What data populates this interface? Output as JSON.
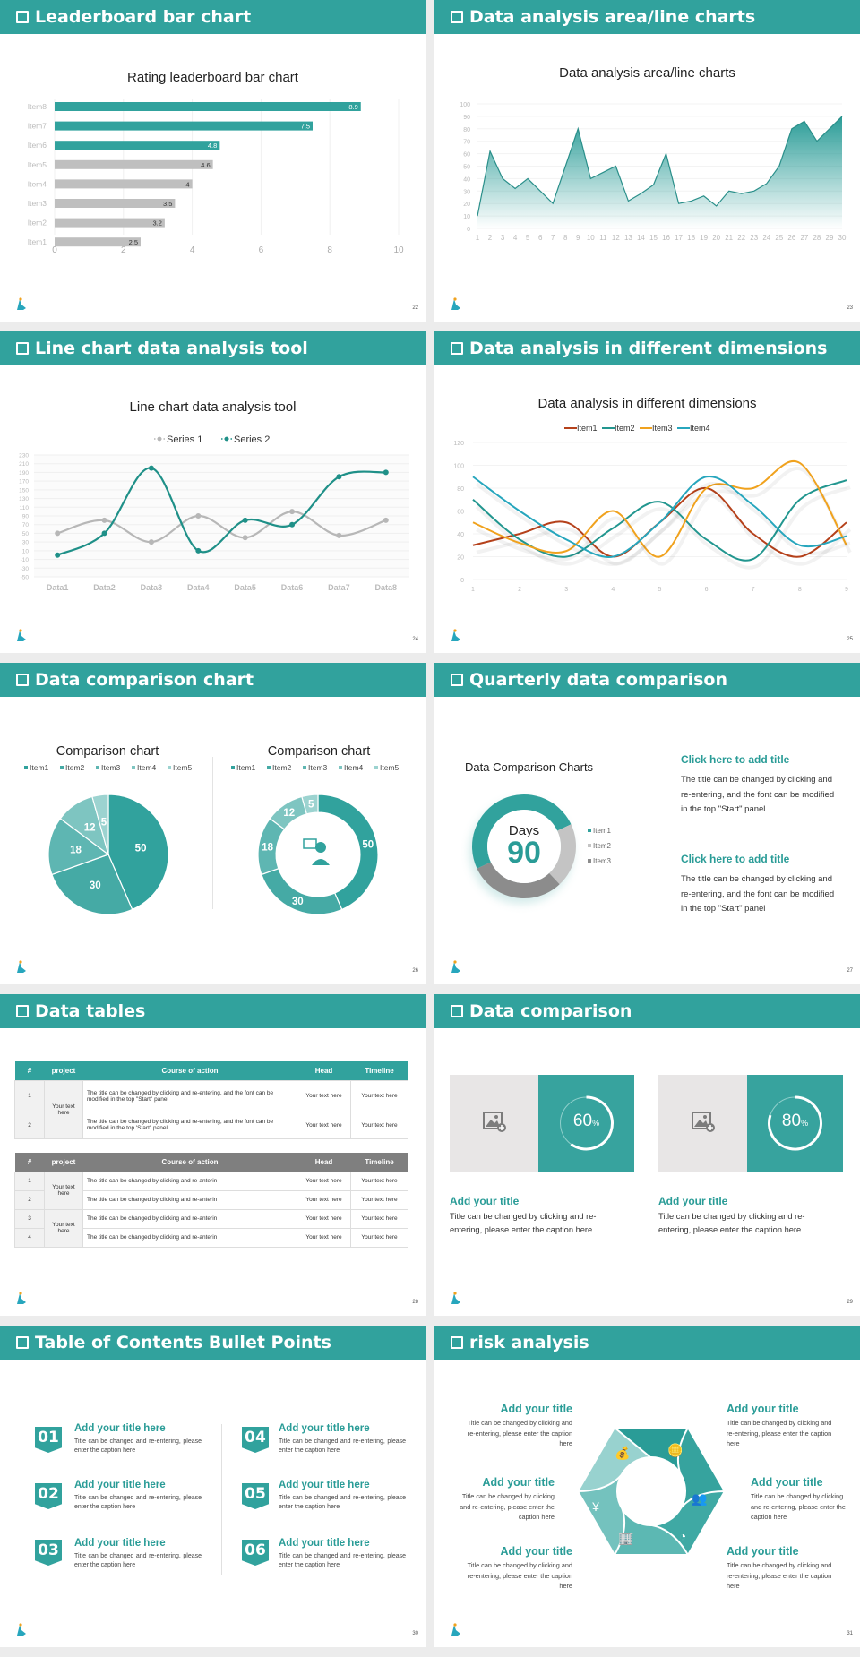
{
  "colors": {
    "teal": "#31a29d",
    "teal_dark": "#2a8f8a",
    "gray_bar": "#bfbfbf",
    "table_gray": "#7f7f7f"
  },
  "slides": [
    {
      "title": "Leaderboard bar chart",
      "page": "22"
    },
    {
      "title": "Data analysis area/line charts",
      "page": "23"
    },
    {
      "title": "Line chart data analysis tool",
      "page": "24"
    },
    {
      "title": "Data analysis in different dimensions",
      "page": "25"
    },
    {
      "title": "Data comparison chart",
      "page": "26"
    },
    {
      "title": "Quarterly data comparison",
      "page": "27"
    },
    {
      "title": "Data tables",
      "page": "28"
    },
    {
      "title": "Data comparison",
      "page": "29"
    },
    {
      "title": "Table of Contents Bullet Points",
      "page": "30"
    },
    {
      "title": "risk analysis",
      "page": "31"
    }
  ],
  "chart_data": [
    {
      "type": "bar",
      "orientation": "horizontal",
      "title": "Rating leaderboard bar chart",
      "categories": [
        "Item1",
        "Item2",
        "Item3",
        "Item4",
        "Item5",
        "Item6",
        "Item7",
        "Item8"
      ],
      "values": [
        2.5,
        3.2,
        3.5,
        4,
        4.6,
        4.8,
        7.5,
        8.9
      ],
      "highlighted": [
        "Item6",
        "Item7",
        "Item8"
      ],
      "xlim": [
        0,
        10
      ],
      "xticks": [
        0,
        2,
        4,
        6,
        8,
        10
      ],
      "grid": true
    },
    {
      "type": "area",
      "title": "Data analysis area/line charts",
      "x": [
        1,
        2,
        3,
        4,
        5,
        6,
        7,
        8,
        9,
        10,
        11,
        12,
        13,
        14,
        15,
        16,
        17,
        18,
        19,
        20,
        21,
        22,
        23,
        24,
        25,
        26,
        27,
        28,
        29,
        30
      ],
      "values": [
        10,
        62,
        40,
        32,
        40,
        30,
        20,
        50,
        80,
        40,
        45,
        50,
        22,
        28,
        35,
        60,
        20,
        22,
        26,
        18,
        30,
        28,
        30,
        36,
        50,
        80,
        86,
        70,
        80,
        90
      ],
      "ylim": [
        0,
        100
      ],
      "yticks": [
        0,
        10,
        20,
        30,
        40,
        50,
        60,
        70,
        80,
        90,
        100
      ],
      "grid": true
    },
    {
      "type": "line",
      "smooth": true,
      "title": "Line chart data analysis tool",
      "categories": [
        "Data1",
        "Data2",
        "Data3",
        "Data4",
        "Data5",
        "Data6",
        "Data7",
        "Data8"
      ],
      "series": [
        {
          "name": "Series 1",
          "color": "#b7b7b7",
          "values": [
            50,
            80,
            30,
            90,
            40,
            100,
            45,
            80
          ]
        },
        {
          "name": "Series 2",
          "color": "#1f9088",
          "values": [
            0,
            50,
            200,
            10,
            80,
            70,
            180,
            190
          ]
        }
      ],
      "ylim": [
        -50,
        230
      ],
      "yticks": [
        -50,
        -30,
        -10,
        10,
        30,
        50,
        70,
        90,
        110,
        130,
        150,
        170,
        190,
        210,
        230
      ],
      "legend_position": "top"
    },
    {
      "type": "line",
      "smooth": true,
      "title": "Data analysis in different dimensions",
      "categories": [
        "1",
        "2",
        "3",
        "4",
        "5",
        "6",
        "7",
        "8",
        "9"
      ],
      "series": [
        {
          "name": "Item1",
          "color": "#b5411b",
          "values": [
            30,
            40,
            50,
            20,
            50,
            80,
            40,
            20,
            50
          ]
        },
        {
          "name": "Item2",
          "color": "#22968f",
          "values": [
            70,
            35,
            20,
            45,
            68,
            35,
            18,
            70,
            87
          ]
        },
        {
          "name": "Item3",
          "color": "#f0a21e",
          "values": [
            50,
            32,
            25,
            60,
            20,
            80,
            80,
            102,
            30
          ]
        },
        {
          "name": "Item4",
          "color": "#27a6bd",
          "values": [
            90,
            60,
            35,
            20,
            50,
            90,
            65,
            30,
            38
          ]
        }
      ],
      "ylim": [
        0,
        120
      ],
      "yticks": [
        0,
        20,
        40,
        60,
        80,
        100,
        120
      ],
      "legend_position": "top"
    },
    {
      "type": "pie",
      "title": "Comparison chart",
      "categories": [
        "Item1",
        "Item2",
        "Item3",
        "Item4",
        "Item5"
      ],
      "values": [
        50,
        30,
        18,
        12,
        5
      ],
      "colors": [
        "#31a29d",
        "#45aaa5",
        "#5eb6b2",
        "#7ec5c1",
        "#9cd3d0"
      ]
    },
    {
      "type": "donut",
      "title": "Comparison chart",
      "categories": [
        "Item1",
        "Item2",
        "Item3",
        "Item4",
        "Item5"
      ],
      "values": [
        50,
        30,
        18,
        12,
        5
      ],
      "colors": [
        "#31a29d",
        "#45aaa5",
        "#5eb6b2",
        "#7ec5c1",
        "#9cd3d0"
      ]
    },
    {
      "type": "donut",
      "title": "Data Comparison Charts",
      "categories": [
        "Item1",
        "Item2",
        "Item3"
      ],
      "values": [
        50,
        20,
        30
      ],
      "colors": [
        "#31a29d",
        "#c4c4c4",
        "#8c8c8c"
      ],
      "center_label": "Days",
      "center_value": "90"
    },
    {
      "type": "gauge",
      "values": [
        60,
        80
      ],
      "unit": "%"
    }
  ],
  "s1": {
    "title": "Rating leaderboard bar chart"
  },
  "s2": {
    "title": "Data analysis area/line charts"
  },
  "s3": {
    "title": "Line chart data analysis tool",
    "legend": [
      "Series 1",
      "Series 2"
    ]
  },
  "s4": {
    "title": "Data analysis in different dimensions",
    "legend": [
      "Item1",
      "Item2",
      "Item3",
      "Item4"
    ]
  },
  "s5": {
    "left_title": "Comparison chart",
    "right_title": "Comparison chart",
    "legend": [
      "Item1",
      "Item2",
      "Item3",
      "Item4",
      "Item5"
    ]
  },
  "s6": {
    "chart_title": "Data Comparison Charts",
    "center_label": "Days",
    "center_value": "90",
    "legend": [
      "Item1",
      "Item2",
      "Item3"
    ],
    "blocks": [
      {
        "title": "Click here to add title",
        "text": "The title can be changed by clicking and re-entering, and the font can be modified in the top \"Start\" panel"
      },
      {
        "title": "Click here to add title",
        "text": "The title can be changed by clicking and re-entering, and the font can be modified in the top \"Start\" panel"
      }
    ]
  },
  "s7": {
    "headers": [
      "#",
      "project",
      "Course of action",
      "Head",
      "Timeline"
    ],
    "table1": {
      "project": "Your text here",
      "rows": [
        {
          "num": "1",
          "action": " The title can be changed by clicking and re-entering, and the font can be modified in the top \"Start\" panel",
          "head": "Your text here",
          "timeline": "Your text here"
        },
        {
          "num": "2",
          "action": "The title can be changed by clicking and re-entering, and the font can be modified in the top 'Start\" panel",
          "head": "Your text here",
          "timeline": "Your text here"
        }
      ]
    },
    "table2": {
      "projects": [
        "Your text here",
        "Your text here"
      ],
      "rows": [
        {
          "num": "1",
          "action": "The title can be changed by clicking and re-anterin",
          "head": "Your text here",
          "timeline": "Your text here"
        },
        {
          "num": "2",
          "action": "The title can be changed by clicking and re-anterin",
          "head": "Your text here",
          "timeline": "Your text here"
        },
        {
          "num": "3",
          "action": "The title can be changed by clicking and re-anterin",
          "head": "Your text here",
          "timeline": "Your text here"
        },
        {
          "num": "4",
          "action": "The title can be changed by clicking and re-anterin",
          "head": "Your text here",
          "timeline": "Your text here"
        }
      ]
    }
  },
  "s8": {
    "cards": [
      {
        "value": "60",
        "unit": "%",
        "title": "Add your title",
        "text": "Title can be changed by clicking and re-entering, please enter the caption here"
      },
      {
        "value": "80",
        "unit": "%",
        "title": "Add your title",
        "text": "Title can be changed by clicking and re-entering, please enter the caption here"
      }
    ]
  },
  "s9": {
    "items": [
      {
        "num": "01",
        "title": "Add your title here",
        "text": "Title can be changed and re-entering, please enter the caption here"
      },
      {
        "num": "02",
        "title": "Add your title here",
        "text": "Title can be changed and re-entering, please enter the caption here"
      },
      {
        "num": "03",
        "title": "Add your title here",
        "text": "Title can be changed and re-entering, please enter the caption here"
      },
      {
        "num": "04",
        "title": "Add your title here",
        "text": "Title can be changed and re-entering, please enter the caption here"
      },
      {
        "num": "05",
        "title": "Add your title here",
        "text": "Title can be changed and re-entering, please enter the caption here"
      },
      {
        "num": "06",
        "title": "Add your title here",
        "text": "Title can be changed and re-entering, please enter the caption here"
      }
    ]
  },
  "s10": {
    "items": [
      {
        "title": "Add your title",
        "text": "Title can be changed by clicking and re-entering, please enter the caption here",
        "icon": "money-bag-icon"
      },
      {
        "title": "Add your title",
        "text": "Title can be changed by clicking and re-entering, please enter the caption here",
        "icon": "coins-dollar-icon"
      },
      {
        "title": "Add your title",
        "text": "Title can be changed by clicking and re-entering, please enter the caption here",
        "icon": "yen-person-icon"
      },
      {
        "title": "Add your title",
        "text": "Title can be changed by clicking and re-entering, please enter the caption here",
        "icon": "users-icon"
      },
      {
        "title": "Add your title",
        "text": "Title can be changed by clicking and re-entering, please enter the caption here",
        "icon": "buildings-icon"
      },
      {
        "title": "Add your title",
        "text": "Title can be changed by clicking and re-entering, please enter the caption here",
        "icon": "pie-chart-icon"
      }
    ]
  }
}
